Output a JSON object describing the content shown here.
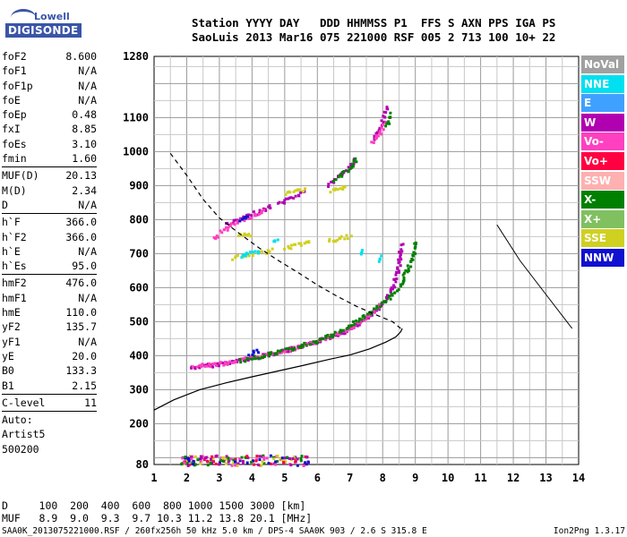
{
  "logo": {
    "line1": "Lowell",
    "line2": "DIGISONDE"
  },
  "header": {
    "line1": "Station YYYY DAY   DDD HHMMSS P1  FFS S AXN PPS IGA PS",
    "line2": "SaoLuis 2013 Mar16 075 221000 RSF 005 2 713 100 10+ 22"
  },
  "params": [
    {
      "k": "foF2",
      "v": "8.600"
    },
    {
      "k": "foF1",
      "v": "N/A"
    },
    {
      "k": "foF1p",
      "v": "N/A"
    },
    {
      "k": "foE",
      "v": "N/A"
    },
    {
      "k": "foEp",
      "v": "0.48"
    },
    {
      "k": "fxI",
      "v": "8.85"
    },
    {
      "k": "foEs",
      "v": "3.10"
    },
    {
      "k": "fmin",
      "v": "1.60"
    },
    {
      "sep": true
    },
    {
      "k": "MUF(D)",
      "v": "20.13"
    },
    {
      "k": "M(D)",
      "v": "2.34"
    },
    {
      "k": "D",
      "v": "N/A"
    },
    {
      "sep": true
    },
    {
      "k": "h`F",
      "v": "366.0"
    },
    {
      "k": "h`F2",
      "v": "366.0"
    },
    {
      "k": "h`E",
      "v": "N/A"
    },
    {
      "k": "h`Es",
      "v": "95.0"
    },
    {
      "sep": true
    },
    {
      "k": "hmF2",
      "v": "476.0"
    },
    {
      "k": "hmF1",
      "v": "N/A"
    },
    {
      "k": "hmE",
      "v": "110.0"
    },
    {
      "k": "yF2",
      "v": "135.7"
    },
    {
      "k": "yF1",
      "v": "N/A"
    },
    {
      "k": "yE",
      "v": "20.0"
    },
    {
      "k": "B0",
      "v": "133.3"
    },
    {
      "k": "B1",
      "v": "2.15"
    },
    {
      "sep": true
    },
    {
      "k": "C-level",
      "v": "11"
    },
    {
      "sep": true
    },
    {
      "t": "Auto:"
    },
    {
      "t": "Artist5"
    },
    {
      "t": "500200"
    }
  ],
  "legend": [
    {
      "label": "NoVal",
      "color": "#a0a0a0"
    },
    {
      "label": "NNE",
      "color": "#00e0f0"
    },
    {
      "label": "E",
      "color": "#40a0ff"
    },
    {
      "label": "W",
      "color": "#b000b0"
    },
    {
      "label": "Vo-",
      "color": "#ff40c0"
    },
    {
      "label": "Vo+",
      "color": "#ff0040"
    },
    {
      "label": "SSW",
      "color": "#ffb0b0"
    },
    {
      "label": "X-",
      "color": "#008000"
    },
    {
      "label": "X+",
      "color": "#80c060"
    },
    {
      "label": "SSE",
      "color": "#d0d020"
    },
    {
      "label": "NNW",
      "color": "#1010d0"
    }
  ],
  "footer": {
    "line1": "D     100  200  400  600  800 1000 1500 3000 [km]",
    "line2": "MUF   8.9  9.0  9.3  9.7 10.3 11.2 13.8 20.1 [MHz]",
    "source": "SAA0K_2013075221000.RSF / 260fx256h 50 kHz 5.0 km / DPS-4 SAA0K 903 / 2.6 S 315.8 E",
    "version": "Ion2Png 1.3.17"
  },
  "chart_data": {
    "type": "scatter",
    "x_ticks": [
      "1",
      "2",
      "3",
      "4",
      "5",
      "6",
      "7",
      "8",
      "9",
      "10",
      "11",
      "12",
      "13",
      "14"
    ],
    "y_ticks": [
      "80",
      "200",
      "300",
      "400",
      "500",
      "600",
      "700",
      "800",
      "900",
      "1000",
      "1100",
      "1280"
    ],
    "xlim": [
      1,
      14
    ],
    "ylim": [
      80,
      1280
    ],
    "x_grid_step": 0.5,
    "y_grid_step": 50,
    "series": [
      {
        "color": "#b000b0",
        "segments": [
          [
            [
              2.1,
              368
            ],
            [
              2.6,
              374
            ],
            [
              3.2,
              382
            ],
            [
              3.8,
              393
            ],
            [
              4.4,
              405
            ],
            [
              5.0,
              418
            ],
            [
              5.6,
              433
            ],
            [
              6.2,
              452
            ],
            [
              6.8,
              475
            ],
            [
              7.3,
              502
            ],
            [
              7.7,
              530
            ],
            [
              8.0,
              558
            ],
            [
              8.2,
              590
            ],
            [
              8.35,
              625
            ],
            [
              8.45,
              665
            ],
            [
              8.5,
              700
            ],
            [
              8.55,
              735
            ]
          ],
          [
            [
              3.2,
              790
            ],
            [
              3.6,
              804
            ],
            [
              4.0,
              820
            ],
            [
              4.4,
              835
            ],
            [
              4.6,
              845
            ]
          ],
          [
            [
              4.8,
              850
            ],
            [
              5.2,
              868
            ],
            [
              5.6,
              888
            ]
          ],
          [
            [
              6.3,
              905
            ],
            [
              6.7,
              935
            ],
            [
              7.0,
              965
            ],
            [
              7.15,
              990
            ]
          ],
          [
            [
              7.7,
              1040
            ],
            [
              7.9,
              1075
            ],
            [
              8.05,
              1110
            ],
            [
              8.15,
              1140
            ]
          ]
        ]
      },
      {
        "color": "#ff40c0",
        "segments": [
          [
            [
              2.2,
              372
            ],
            [
              3.0,
              380
            ],
            [
              3.6,
              390
            ],
            [
              4.4,
              406
            ],
            [
              5.3,
              426
            ],
            [
              6.0,
              446
            ],
            [
              6.6,
              468
            ],
            [
              7.2,
              498
            ],
            [
              7.6,
              526
            ],
            [
              7.9,
              555
            ]
          ],
          [
            [
              2.8,
              750
            ],
            [
              3.3,
              785
            ],
            [
              3.8,
              808
            ],
            [
              4.4,
              832
            ]
          ],
          [
            [
              7.65,
              1030
            ],
            [
              7.9,
              1060
            ],
            [
              8.1,
              1100
            ]
          ]
        ]
      },
      {
        "color": "#008000",
        "segments": [
          [
            [
              3.6,
              388
            ],
            [
              4.8,
              415
            ],
            [
              5.5,
              432
            ],
            [
              6.6,
              470
            ],
            [
              7.6,
              532
            ],
            [
              8.15,
              568
            ],
            [
              8.5,
              610
            ],
            [
              8.75,
              660
            ],
            [
              8.9,
              700
            ],
            [
              8.95,
              745
            ]
          ],
          [
            [
              6.5,
              920
            ],
            [
              6.9,
              950
            ],
            [
              7.2,
              985
            ]
          ],
          [
            [
              8.1,
              1080
            ],
            [
              8.25,
              1120
            ]
          ]
        ]
      },
      {
        "color": "#d0d020",
        "segments": [
          [
            [
              3.4,
              690
            ],
            [
              3.8,
              698
            ],
            [
              4.2,
              705
            ],
            [
              4.6,
              716
            ]
          ],
          [
            [
              5.0,
              720
            ],
            [
              5.4,
              730
            ],
            [
              5.8,
              740
            ]
          ],
          [
            [
              6.3,
              740
            ],
            [
              6.7,
              748
            ],
            [
              7.0,
              755
            ]
          ],
          [
            [
              3.5,
              755
            ],
            [
              4.0,
              760
            ]
          ],
          [
            [
              5.0,
              880
            ],
            [
              5.6,
              895
            ]
          ],
          [
            [
              6.4,
              890
            ],
            [
              6.9,
              900
            ]
          ]
        ]
      },
      {
        "color": "#00e0f0",
        "segments": [
          [
            [
              3.6,
              695
            ],
            [
              3.9,
              705
            ],
            [
              4.2,
              712
            ]
          ],
          [
            [
              4.6,
              738
            ],
            [
              4.8,
              745
            ]
          ],
          [
            [
              7.3,
              700
            ],
            [
              7.4,
              720
            ]
          ],
          [
            [
              7.8,
              680
            ],
            [
              7.9,
              700
            ]
          ]
        ]
      },
      {
        "color": "#1010d0",
        "segments": [
          [
            [
              3.6,
              800
            ],
            [
              3.9,
              812
            ]
          ],
          [
            [
              3.9,
              410
            ],
            [
              4.2,
              418
            ]
          ]
        ]
      }
    ],
    "noise": {
      "xlim": [
        1.8,
        5.8
      ],
      "ylim": [
        80,
        110
      ],
      "colors": [
        "#b000b0",
        "#1010d0",
        "#d0d020",
        "#ff0040",
        "#008000",
        "#ff40c0"
      ]
    },
    "profile_solid": [
      [
        1.0,
        240
      ],
      [
        1.6,
        270
      ],
      [
        2.4,
        300
      ],
      [
        3.2,
        320
      ],
      [
        4.0,
        338
      ],
      [
        4.8,
        355
      ],
      [
        5.6,
        372
      ],
      [
        6.4,
        390
      ],
      [
        7.0,
        402
      ],
      [
        7.6,
        420
      ],
      [
        8.1,
        440
      ],
      [
        8.4,
        455
      ],
      [
        8.55,
        470
      ],
      [
        8.6,
        480
      ]
    ],
    "profile_dashed": [
      [
        1.5,
        995
      ],
      [
        2.0,
        930
      ],
      [
        2.5,
        860
      ],
      [
        3.0,
        805
      ],
      [
        3.6,
        760
      ],
      [
        4.2,
        718
      ],
      [
        4.8,
        680
      ],
      [
        5.4,
        645
      ],
      [
        6.0,
        608
      ],
      [
        6.6,
        575
      ],
      [
        7.2,
        545
      ],
      [
        7.8,
        520
      ],
      [
        8.3,
        500
      ],
      [
        8.55,
        480
      ]
    ],
    "extra_line": [
      [
        11.5,
        785
      ],
      [
        12.2,
        680
      ],
      [
        13.0,
        580
      ],
      [
        13.8,
        480
      ]
    ]
  }
}
